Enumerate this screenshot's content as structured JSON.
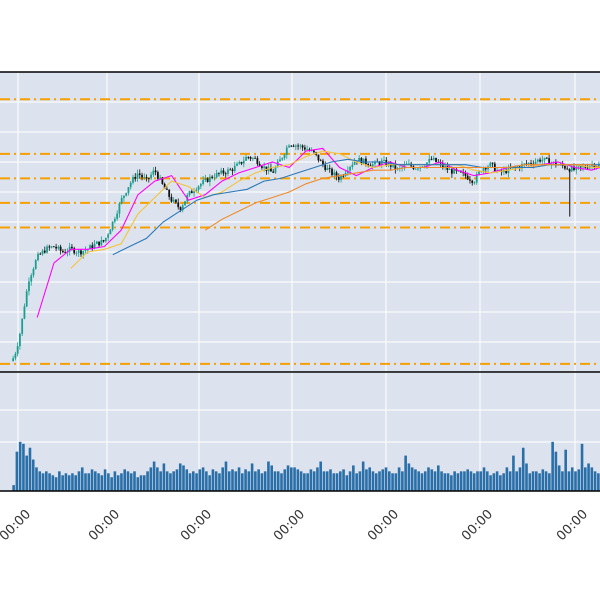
{
  "chart_data": {
    "type": "candlestick",
    "grid": true,
    "panel_background": "#dde3ee",
    "colors": {
      "up": "#1a9e8f",
      "down": "#111111",
      "hline": "#f5a000",
      "volume": "#2a6fa8",
      "ma_fast": "#ff00ff",
      "ma_mid": "#f5c33b",
      "ma_slow": "#2b78b8",
      "ma_long": "#f08a2a"
    },
    "x_tick_labels": [
      "00:00",
      "00:00",
      "00:00",
      "00:00",
      "00:00",
      "00:00",
      "00:00"
    ],
    "price_levels": [
      100,
      80,
      71,
      62,
      53,
      3
    ],
    "ylim": [
      0,
      110
    ],
    "series": [
      {
        "kind": "close",
        "x": [
          0,
          0.5,
          1,
          1.5,
          2,
          3,
          4,
          5,
          6,
          7,
          8,
          9,
          10,
          11,
          12,
          13,
          14,
          15,
          16,
          17,
          18,
          19,
          20,
          21,
          22,
          23,
          24,
          25,
          26,
          27,
          28,
          29,
          30,
          31,
          32,
          33,
          34,
          35,
          36,
          37,
          38,
          39,
          40,
          41,
          42,
          43,
          44,
          45,
          46,
          47,
          48,
          49,
          50,
          51,
          52,
          53,
          54,
          55,
          56,
          57,
          58,
          59,
          60,
          61,
          62,
          63,
          64,
          65,
          66,
          67,
          68,
          69,
          70
        ],
        "values": [
          4,
          8,
          15,
          25,
          34,
          42,
          45,
          46,
          44,
          45,
          44,
          45,
          47,
          48,
          55,
          63,
          69,
          73,
          70,
          74,
          68,
          63,
          60,
          65,
          68,
          70,
          72,
          73,
          74,
          76,
          79,
          78,
          75,
          73,
          78,
          84,
          83,
          82,
          80,
          76,
          73,
          71,
          75,
          78,
          77,
          76,
          77,
          76,
          74,
          76,
          75,
          76,
          78,
          76,
          74,
          73,
          72,
          70,
          75,
          76,
          73,
          74,
          75,
          76,
          77,
          78,
          77,
          76,
          75,
          74,
          75,
          76,
          76
        ]
      },
      {
        "kind": "ma_fast",
        "x": [
          3,
          5,
          7,
          9,
          11,
          13,
          15,
          17,
          19,
          21,
          23,
          25,
          27,
          29,
          31,
          33,
          35,
          37,
          39,
          41,
          43,
          45,
          47,
          49,
          51,
          53,
          55,
          57,
          59,
          61,
          63,
          65,
          67,
          69,
          70
        ],
        "values": [
          20,
          40,
          45,
          45,
          46,
          52,
          65,
          70,
          72,
          63,
          65,
          70,
          73,
          75,
          77,
          75,
          81,
          82,
          75,
          72,
          75,
          77,
          75,
          75,
          77,
          74,
          72,
          73,
          75,
          75,
          76,
          77,
          75,
          74,
          75
        ]
      },
      {
        "kind": "ma_mid",
        "x": [
          7,
          9,
          11,
          13,
          15,
          17,
          19,
          21,
          23,
          25,
          27,
          29,
          31,
          33,
          35,
          37,
          39,
          41,
          43,
          45,
          47,
          49,
          51,
          53,
          55,
          57,
          59,
          61,
          63,
          65,
          67,
          69,
          70
        ],
        "values": [
          38,
          44,
          45,
          47,
          58,
          64,
          70,
          68,
          64,
          66,
          70,
          73,
          75,
          76,
          79,
          81,
          80,
          77,
          75,
          76,
          76,
          76,
          76,
          76,
          74,
          73,
          74,
          75,
          76,
          76,
          76,
          75,
          75
        ]
      },
      {
        "kind": "ma_slow",
        "x": [
          12,
          14,
          16,
          18,
          20,
          22,
          24,
          26,
          28,
          30,
          32,
          34,
          36,
          38,
          40,
          42,
          44,
          46,
          48,
          50,
          52,
          54,
          56,
          58,
          60,
          62,
          64,
          66,
          68,
          70
        ],
        "values": [
          43,
          46,
          49,
          55,
          59,
          63,
          65,
          66,
          67,
          70,
          71,
          73,
          75,
          77,
          78,
          77,
          77,
          76,
          76,
          76,
          76,
          76,
          75,
          75,
          75,
          75,
          76,
          76,
          76,
          76
        ]
      },
      {
        "kind": "ma_long",
        "x": [
          23,
          25,
          27,
          29,
          31,
          33,
          35,
          37,
          39,
          41,
          43,
          45,
          47,
          49,
          51,
          53,
          55,
          57,
          59,
          61,
          63,
          65,
          67,
          69,
          70
        ],
        "values": [
          52,
          56,
          59,
          62,
          64,
          66,
          69,
          71,
          72,
          73,
          74,
          74,
          75,
          75,
          75,
          75,
          75,
          75,
          75,
          76,
          76,
          76,
          76,
          76,
          75
        ]
      }
    ],
    "volume": {
      "ylim": [
        0,
        60
      ],
      "values": [
        3,
        20,
        25,
        24,
        18,
        22,
        16,
        12,
        10,
        9,
        10,
        9,
        8,
        7,
        10,
        8,
        9,
        8,
        9,
        8,
        10,
        12,
        9,
        9,
        11,
        10,
        9,
        8,
        11,
        9,
        7,
        10,
        8,
        9,
        11,
        10,
        9,
        10,
        7,
        8,
        8,
        10,
        12,
        15,
        12,
        10,
        14,
        10,
        9,
        10,
        11,
        14,
        13,
        11,
        9,
        10,
        9,
        11,
        12,
        10,
        8,
        11,
        10,
        9,
        12,
        15,
        10,
        11,
        10,
        12,
        9,
        11,
        10,
        14,
        10,
        11,
        9,
        10,
        15,
        13,
        10,
        10,
        9,
        11,
        13,
        12,
        12,
        11,
        10,
        9,
        9,
        11,
        10,
        12,
        15,
        10,
        10,
        11,
        9,
        9,
        10,
        11,
        8,
        10,
        13,
        9,
        10,
        15,
        11,
        12,
        10,
        9,
        10,
        11,
        12,
        10,
        9,
        9,
        12,
        10,
        18,
        14,
        12,
        11,
        10,
        9,
        10,
        12,
        11,
        10,
        13,
        10,
        9,
        9,
        8,
        10,
        9,
        10,
        10,
        11,
        10,
        9,
        10,
        10,
        12,
        10,
        8,
        9,
        10,
        8,
        9,
        12,
        10,
        18,
        10,
        12,
        22,
        14,
        9,
        10,
        10,
        9,
        11,
        10,
        9,
        25,
        20,
        13,
        10,
        21,
        10,
        12,
        10,
        11,
        24,
        12,
        14,
        12,
        10,
        9
      ]
    }
  }
}
